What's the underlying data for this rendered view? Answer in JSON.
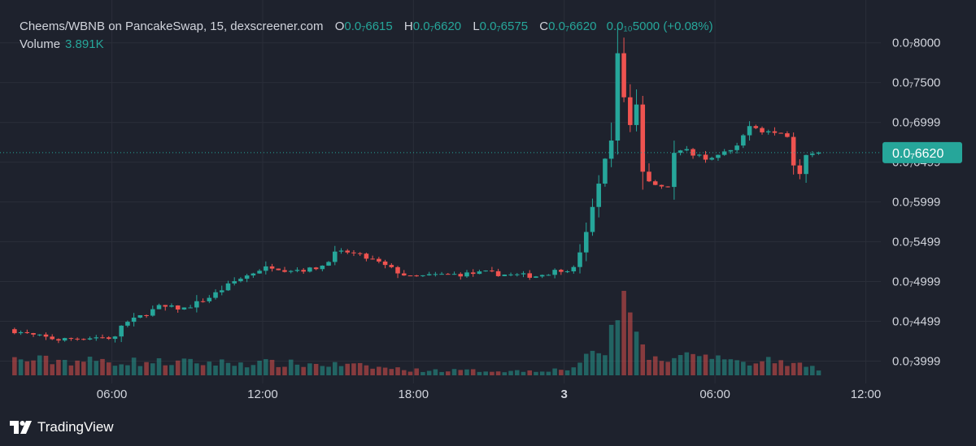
{
  "header": {
    "symbol": "Cheems/WBNB on PancakeSwap, 15, dexscreener.com",
    "open_label": "O",
    "open_value": "0.0₇6615",
    "high_label": "H",
    "high_value": "0.0₇6620",
    "low_label": "L",
    "low_value": "0.0₇6575",
    "close_label": "C",
    "close_value": "0.0₇6620",
    "change_value": "0.0₁₀5000 (+0.08%)",
    "volume_label": "Volume",
    "volume_value": "3.891K"
  },
  "brand": {
    "name": "TradingView",
    "logo_icon": "tradingview-logo-icon"
  },
  "colors": {
    "background": "#1e222d",
    "up": "#26a69a",
    "down": "#ef5350",
    "grid": "#2a2e39",
    "axis_text": "#d1d4dc"
  },
  "chart_data": {
    "type": "candlestick",
    "price_unit_note_hidden": "",
    "y_ticks": [
      {
        "value": 0.8,
        "label": "0.0₇8000"
      },
      {
        "value": 0.75,
        "label": "0.0₇7500"
      },
      {
        "value": 0.6999,
        "label": "0.0₇6999"
      },
      {
        "value": 0.6499,
        "label": "0.0₇6499"
      },
      {
        "value": 0.5999,
        "label": "0.0₇5999"
      },
      {
        "value": 0.5499,
        "label": "0.0₇5499"
      },
      {
        "value": 0.4999,
        "label": "0.0₇4999"
      },
      {
        "value": 0.4499,
        "label": "0.0₇4499"
      },
      {
        "value": 0.3999,
        "label": "0.0₇3999"
      }
    ],
    "x_ticks": [
      {
        "hour": 6,
        "label": "06:00",
        "bold": false
      },
      {
        "hour": 12,
        "label": "12:00",
        "bold": false
      },
      {
        "hour": 18,
        "label": "18:00",
        "bold": false
      },
      {
        "hour": 24,
        "label": "3",
        "bold": true
      },
      {
        "hour": 30,
        "label": "06:00",
        "bold": false
      },
      {
        "hour": 36,
        "label": "12:00",
        "bold": false
      }
    ],
    "x_range_hours": [
      2.0,
      36.6
    ],
    "y_range": [
      0.382,
      0.815
    ],
    "last_price": {
      "value": 0.662,
      "label": "0.0₇6620"
    },
    "close_keypoints": [
      [
        2.0,
        0.44
      ],
      [
        3.0,
        0.432
      ],
      [
        4.0,
        0.427
      ],
      [
        5.5,
        0.43
      ],
      [
        6.3,
        0.429
      ],
      [
        6.5,
        0.445
      ],
      [
        7.0,
        0.452
      ],
      [
        8.0,
        0.468
      ],
      [
        9.0,
        0.466
      ],
      [
        10.0,
        0.48
      ],
      [
        11.0,
        0.5
      ],
      [
        12.0,
        0.515
      ],
      [
        12.5,
        0.519
      ],
      [
        13.0,
        0.515
      ],
      [
        14.0,
        0.515
      ],
      [
        14.5,
        0.52
      ],
      [
        15.0,
        0.535
      ],
      [
        15.5,
        0.537
      ],
      [
        16.5,
        0.527
      ],
      [
        17.5,
        0.512
      ],
      [
        18.0,
        0.505
      ],
      [
        19.0,
        0.508
      ],
      [
        20.0,
        0.509
      ],
      [
        21.0,
        0.511
      ],
      [
        22.0,
        0.508
      ],
      [
        23.0,
        0.507
      ],
      [
        24.0,
        0.515
      ],
      [
        24.5,
        0.516
      ],
      [
        25.0,
        0.56
      ],
      [
        25.5,
        0.625
      ],
      [
        26.0,
        0.68
      ],
      [
        26.25,
        0.785
      ],
      [
        26.5,
        0.73
      ],
      [
        26.75,
        0.695
      ],
      [
        27.0,
        0.722
      ],
      [
        27.25,
        0.64
      ],
      [
        27.5,
        0.625
      ],
      [
        27.75,
        0.624
      ],
      [
        28.0,
        0.62
      ],
      [
        28.25,
        0.62
      ],
      [
        28.5,
        0.661
      ],
      [
        29.0,
        0.664
      ],
      [
        29.5,
        0.658
      ],
      [
        29.75,
        0.655
      ],
      [
        30.25,
        0.658
      ],
      [
        31.0,
        0.668
      ],
      [
        31.5,
        0.698
      ],
      [
        31.75,
        0.694
      ],
      [
        32.0,
        0.69
      ],
      [
        33.0,
        0.684
      ],
      [
        33.25,
        0.648
      ],
      [
        33.5,
        0.638
      ],
      [
        33.75,
        0.6615
      ],
      [
        34.0,
        0.662
      ]
    ],
    "volume_keypoints": [
      [
        2.0,
        0.18
      ],
      [
        6.3,
        0.16
      ],
      [
        8.0,
        0.15
      ],
      [
        12.0,
        0.14
      ],
      [
        15.0,
        0.12
      ],
      [
        18.0,
        0.06
      ],
      [
        22.0,
        0.05
      ],
      [
        24.0,
        0.07
      ],
      [
        25.5,
        0.3
      ],
      [
        26.0,
        0.62
      ],
      [
        26.25,
        0.85
      ],
      [
        26.5,
        0.55
      ],
      [
        26.75,
        0.48
      ],
      [
        27.0,
        0.28
      ],
      [
        27.5,
        0.2
      ],
      [
        28.5,
        0.2
      ],
      [
        30.0,
        0.17
      ],
      [
        32.0,
        0.16
      ],
      [
        34.0,
        0.08
      ]
    ],
    "volume_max": 1.0
  }
}
